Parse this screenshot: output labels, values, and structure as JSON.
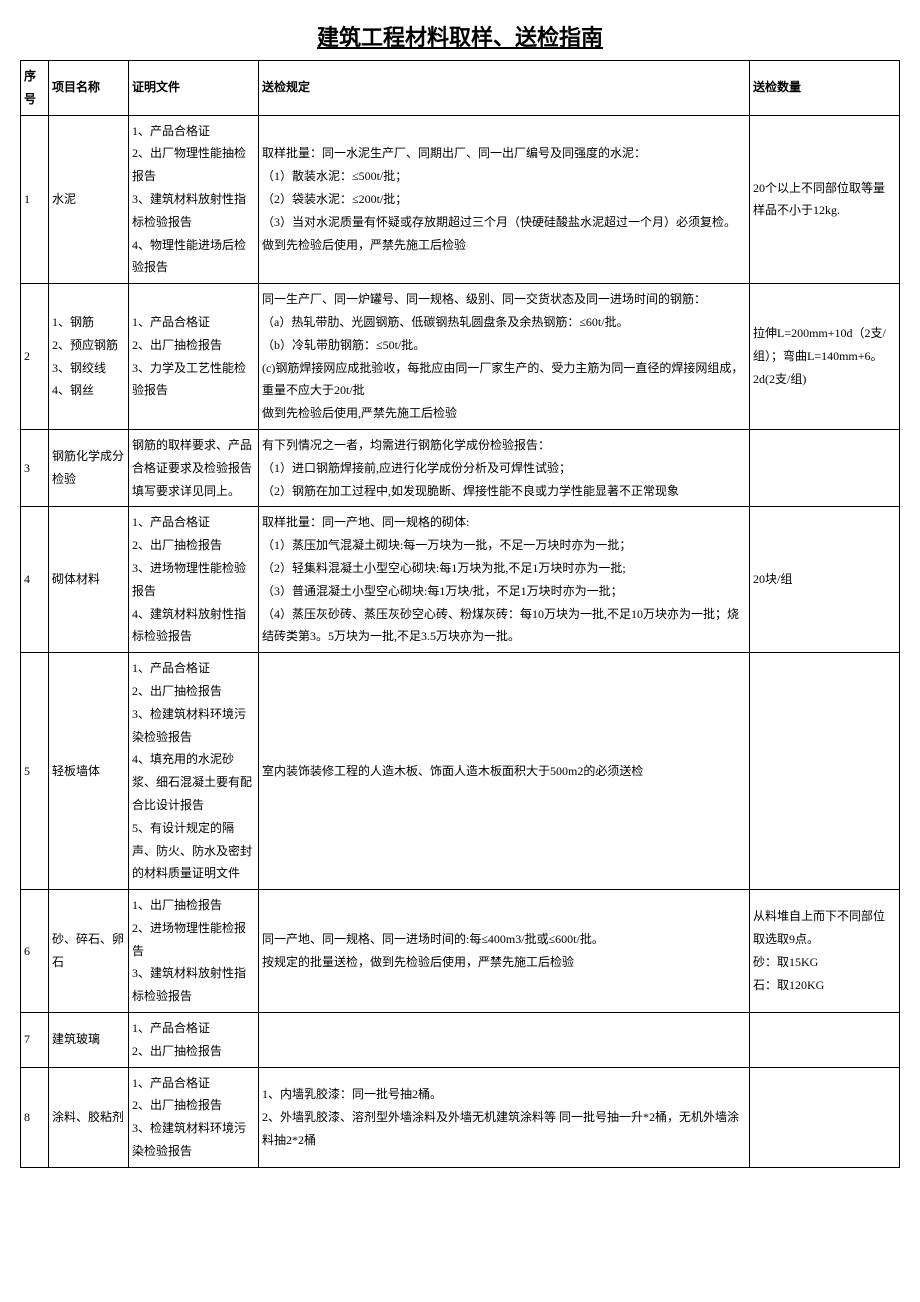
{
  "title": "建筑工程材料取样、送检指南",
  "headers": {
    "seq": "序号",
    "name": "项目名称",
    "doc": "证明文件",
    "rule": "送检规定",
    "qty": "送检数量"
  },
  "rows": [
    {
      "seq": "1",
      "name": "水泥",
      "doc": "1、产品合格证\n2、出厂物理性能抽检报告\n3、建筑材料放射性指标检验报告\n4、物理性能进场后检验报告",
      "rule": "取样批量：同一水泥生产厂、同期出厂、同一出厂编号及同强度的水泥：\n（1）散装水泥：≤500t/批；\n（2）袋装水泥：≤200t/批；\n（3）当对水泥质量有怀疑或存放期超过三个月（快硬硅酸盐水泥超过一个月）必须复检。\n做到先检验后使用，严禁先施工后检验",
      "qty": "20个以上不同部位取等量样品不小于12kg."
    },
    {
      "seq": "2",
      "name": "1、钢筋\n2、预应钢筋\n3、钢绞线\n4、钢丝",
      "doc": "1、产品合格证\n2、出厂抽检报告\n3、力学及工艺性能检验报告",
      "rule": "同一生产厂、同一炉罐号、同一规格、级别、同一交货状态及同一进场时间的钢筋：\n（a）热轧带肋、光圆钢筋、低碳钢热轧圆盘条及余热钢筋：≤60t/批。\n（b）冷轧带肋钢筋：≤50t/批。\n(c)钢筋焊接网应成批验收，每批应由同一厂家生产的、受力主筋为同一直径的焊接网组成，重量不应大于20t/批\n做到先检验后使用,严禁先施工后检验",
      "qty": "拉伸L=200mm+10d（2支/组）；弯曲L=140mm+6。2d(2支/组)"
    },
    {
      "seq": "3",
      "name": "钢筋化学成分检验",
      "doc": "钢筋的取样要求、产品合格证要求及检验报告填写要求详见同上。",
      "rule": "有下列情况之一者，均需进行钢筋化学成份检验报告：\n（1）进口钢筋焊接前,应进行化学成份分析及可焊性试验；\n（2）钢筋在加工过程中,如发现脆断、焊接性能不良或力学性能显著不正常现象",
      "qty": ""
    },
    {
      "seq": "4",
      "name": "砌体材料",
      "doc": "1、产品合格证\n2、出厂抽检报告\n3、进场物理性能检验报告\n4、建筑材料放射性指标检验报告",
      "rule": "取样批量：同一产地、同一规格的砌体:\n（1）蒸压加气混凝土砌块:每一万块为一批，不足一万块时亦为一批；\n（2）轻集料混凝土小型空心砌块:每1万块为批,不足1万块时亦为一批;\n（3）普通混凝土小型空心砌块:每1万块/批，不足1万块时亦为一批；\n（4）蒸压灰砂砖、蒸压灰砂空心砖、粉煤灰砖：每10万块为一批,不足10万块亦为一批；烧结砖类第3。5万块为一批,不足3.5万块亦为一批。",
      "qty": "20块/组"
    },
    {
      "seq": "5",
      "name": "轻板墙体",
      "doc": "1、产品合格证\n2、出厂抽检报告\n3、检建筑材料环境污染检验报告\n4、填充用的水泥砂浆、细石混凝土要有配合比设计报告\n5、有设计规定的隔声、防火、防水及密封的材料质量证明文件",
      "rule": "室内装饰装修工程的人造木板、饰面人造木板面积大于500m2的必须送检",
      "qty": ""
    },
    {
      "seq": "6",
      "name": "砂、碎石、卵石",
      "doc": "1、出厂抽检报告\n2、进场物理性能检报告\n3、建筑材料放射性指标检验报告",
      "rule": "同一产地、同一规格、同一进场时间的:每≤400m3/批或≤600t/批。\n按规定的批量送检，做到先检验后使用，严禁先施工后检验",
      "qty": "从料堆自上而下不同部位取选取9点。\n砂：取15KG\n石：取120KG"
    },
    {
      "seq": "7",
      "name": "建筑玻璃",
      "doc": "1、产品合格证\n2、出厂抽检报告",
      "rule": "",
      "qty": ""
    },
    {
      "seq": "8",
      "name": "涂料、胶粘剂",
      "doc": "1、产品合格证\n2、出厂抽检报告\n3、检建筑材料环境污染检验报告",
      "rule": "1、内墙乳胶漆：同一批号抽2桶。\n2、外墙乳胶漆、溶剂型外墙涂料及外墙无机建筑涂料等 同一批号抽一升*2桶，无机外墙涂料抽2*2桶",
      "qty": ""
    }
  ]
}
